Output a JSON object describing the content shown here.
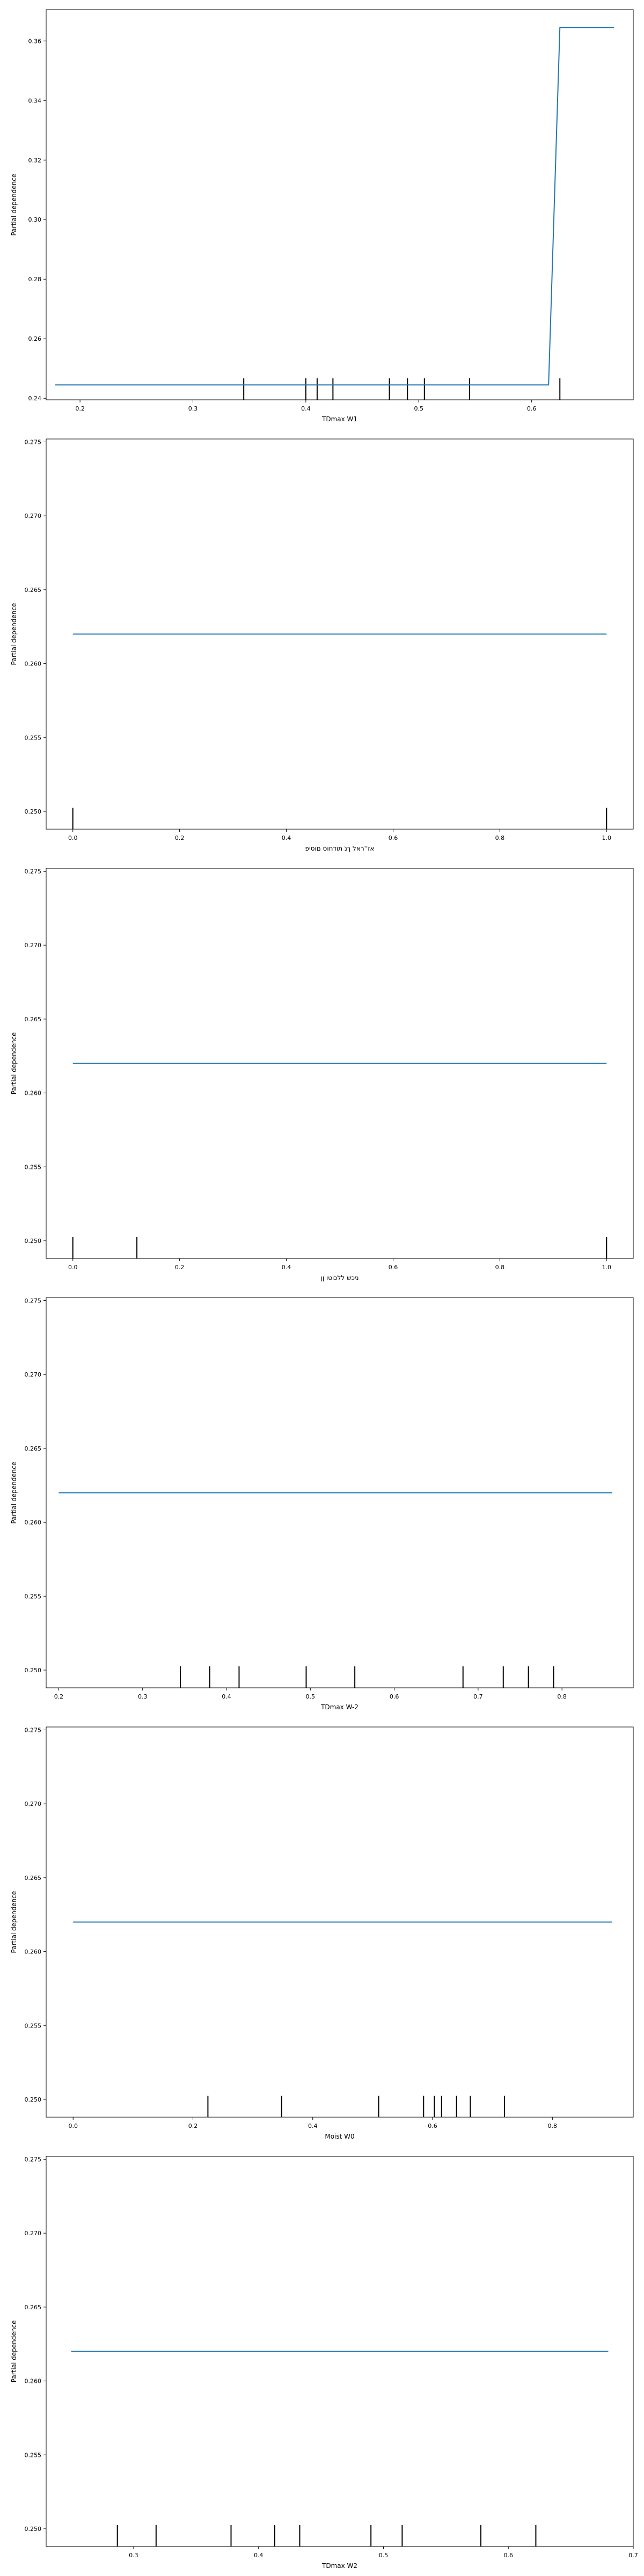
{
  "chart_data": [
    {
      "type": "line",
      "xlabel": "TDmax W1",
      "ylabel": "Partial dependence",
      "xlim": [
        0.17,
        0.69
      ],
      "ylim": [
        0.2395,
        0.3705
      ],
      "xticks": [
        0.2,
        0.3,
        0.4,
        0.5,
        0.6
      ],
      "xtick_labels": [
        "0.2",
        "0.3",
        "0.4",
        "0.5",
        "0.6"
      ],
      "yticks": [
        0.24,
        0.26,
        0.28,
        0.3,
        0.32,
        0.34,
        0.36
      ],
      "ytick_labels": [
        "0.24",
        "0.26",
        "0.28",
        "0.30",
        "0.32",
        "0.34",
        "0.36"
      ],
      "x": [
        0.178,
        0.615,
        0.625,
        0.673
      ],
      "y": [
        0.2445,
        0.2445,
        0.3645,
        0.3645
      ],
      "rug": [
        0.345,
        0.4,
        0.41,
        0.424,
        0.474,
        0.49,
        0.505,
        0.545,
        0.625
      ],
      "rug_height": 0.055
    },
    {
      "type": "line",
      "xlabel": "אז''ראל ךנֹ תודחוס םוסיפ",
      "ylabel": "Partial dependence",
      "xlim": [
        -0.05,
        1.05
      ],
      "ylim": [
        0.2488,
        0.2752
      ],
      "xticks": [
        0.0,
        0.2,
        0.4,
        0.6,
        0.8,
        1.0
      ],
      "xtick_labels": [
        "0.0",
        "0.2",
        "0.4",
        "0.6",
        "0.8",
        "1.0"
      ],
      "yticks": [
        0.25,
        0.255,
        0.26,
        0.265,
        0.27,
        0.275
      ],
      "ytick_labels": [
        "0.250",
        "0.255",
        "0.260",
        "0.265",
        "0.270",
        "0.275"
      ],
      "x": [
        0.0,
        1.0
      ],
      "y": [
        0.262,
        0.262
      ],
      "rug": [
        0.0,
        1.0
      ],
      "rug_height": 0.055
    },
    {
      "type": "line",
      "xlabel": "ניכש ללכוטו ןן",
      "ylabel": "Partial dependence",
      "xlim": [
        -0.05,
        1.05
      ],
      "ylim": [
        0.2488,
        0.2752
      ],
      "xticks": [
        0.0,
        0.2,
        0.4,
        0.6,
        0.8,
        1.0
      ],
      "xtick_labels": [
        "0.0",
        "0.2",
        "0.4",
        "0.6",
        "0.8",
        "1.0"
      ],
      "yticks": [
        0.25,
        0.255,
        0.26,
        0.265,
        0.27,
        0.275
      ],
      "ytick_labels": [
        "0.250",
        "0.255",
        "0.260",
        "0.265",
        "0.270",
        "0.275"
      ],
      "x": [
        0.0,
        1.0
      ],
      "y": [
        0.262,
        0.262
      ],
      "rug": [
        0.0,
        0.12,
        1.0
      ],
      "rug_height": 0.055
    },
    {
      "type": "line",
      "xlabel": "TDmax W-2",
      "ylabel": "Partial dependence",
      "xlim": [
        0.185,
        0.885
      ],
      "ylim": [
        0.2488,
        0.2752
      ],
      "xticks": [
        0.2,
        0.3,
        0.4,
        0.5,
        0.6,
        0.7,
        0.8
      ],
      "xtick_labels": [
        "0.2",
        "0.3",
        "0.4",
        "0.5",
        "0.6",
        "0.7",
        "0.8"
      ],
      "yticks": [
        0.25,
        0.255,
        0.26,
        0.265,
        0.27,
        0.275
      ],
      "ytick_labels": [
        "0.250",
        "0.255",
        "0.260",
        "0.265",
        "0.270",
        "0.275"
      ],
      "x": [
        0.2,
        0.86
      ],
      "y": [
        0.262,
        0.262
      ],
      "rug": [
        0.345,
        0.38,
        0.415,
        0.495,
        0.553,
        0.682,
        0.73,
        0.76,
        0.79
      ],
      "rug_height": 0.055
    },
    {
      "type": "line",
      "xlabel": "Moist W0",
      "ylabel": "Partial dependence",
      "xlim": [
        -0.045,
        0.935
      ],
      "ylim": [
        0.2488,
        0.2752
      ],
      "xticks": [
        0.0,
        0.2,
        0.4,
        0.6,
        0.8
      ],
      "xtick_labels": [
        "0.0",
        "0.2",
        "0.4",
        "0.6",
        "0.8"
      ],
      "yticks": [
        0.25,
        0.255,
        0.26,
        0.265,
        0.27,
        0.275
      ],
      "ytick_labels": [
        "0.250",
        "0.255",
        "0.260",
        "0.265",
        "0.270",
        "0.275"
      ],
      "x": [
        0.0,
        0.9
      ],
      "y": [
        0.262,
        0.262
      ],
      "rug": [
        0.225,
        0.348,
        0.51,
        0.585,
        0.603,
        0.615,
        0.64,
        0.663,
        0.72
      ],
      "rug_height": 0.055
    },
    {
      "type": "line",
      "xlabel": "TDmax W2",
      "ylabel": "Partial dependence",
      "xlim": [
        0.23,
        0.7
      ],
      "ylim": [
        0.2488,
        0.2752
      ],
      "xticks": [
        0.3,
        0.4,
        0.5,
        0.6,
        0.7
      ],
      "xtick_labels": [
        "0.3",
        "0.4",
        "0.5",
        "0.6",
        "0.7"
      ],
      "yticks": [
        0.25,
        0.255,
        0.26,
        0.265,
        0.27,
        0.275
      ],
      "ytick_labels": [
        "0.250",
        "0.255",
        "0.260",
        "0.265",
        "0.270",
        "0.275"
      ],
      "x": [
        0.25,
        0.68
      ],
      "y": [
        0.262,
        0.262
      ],
      "rug": [
        0.287,
        0.318,
        0.378,
        0.413,
        0.433,
        0.49,
        0.515,
        0.578,
        0.622
      ],
      "rug_height": 0.055
    }
  ],
  "colors": {
    "line": "#1f77b4",
    "rug": "#000000",
    "axes": "#000000"
  }
}
